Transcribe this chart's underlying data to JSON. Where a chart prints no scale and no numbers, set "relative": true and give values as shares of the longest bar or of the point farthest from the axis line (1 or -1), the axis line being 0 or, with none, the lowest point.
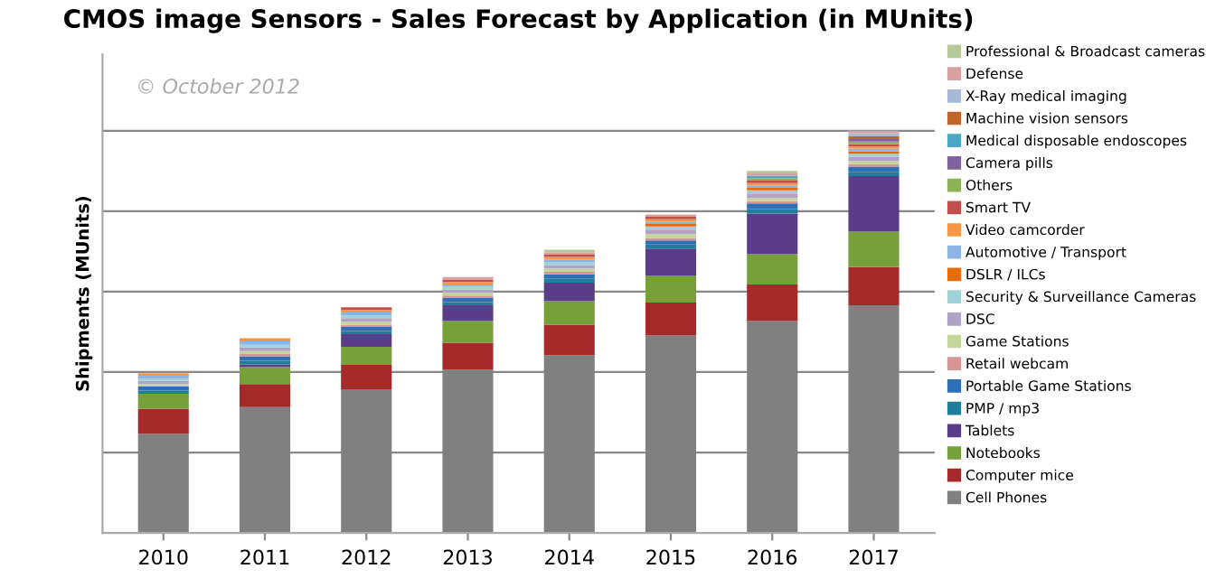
{
  "chart_data": {
    "type": "bar",
    "title": "CMOS image Sensors - Sales Forecast by Application (in MUnits)",
    "ylabel": "Shipments (MUnits)",
    "annotations": [
      "© October 2012"
    ],
    "relative": true,
    "stacked": true,
    "grid": "y",
    "legend": "right",
    "categories": [
      "2010",
      "2011",
      "2012",
      "2013",
      "2014",
      "2015",
      "2016",
      "2017"
    ],
    "series": [
      {
        "name": "Cell Phones",
        "color": "#808080",
        "values": [
          0.246,
          0.313,
          0.357,
          0.406,
          0.442,
          0.491,
          0.527,
          0.566
        ]
      },
      {
        "name": "Computer mice",
        "color": "#a52a2a",
        "values": [
          0.063,
          0.057,
          0.061,
          0.067,
          0.076,
          0.082,
          0.091,
          0.095
        ]
      },
      {
        "name": "Notebooks",
        "color": "#76a03a",
        "values": [
          0.037,
          0.042,
          0.045,
          0.054,
          0.058,
          0.067,
          0.075,
          0.088
        ]
      },
      {
        "name": "Tablets",
        "color": "#5a3d8a",
        "values": [
          null,
          0.007,
          0.031,
          0.039,
          0.046,
          0.067,
          0.101,
          0.138
        ]
      },
      {
        "name": "PMP / mp3",
        "color": "#1f7f9a",
        "values": [
          0.008,
          0.009,
          0.008,
          0.008,
          0.01,
          0.01,
          0.011,
          0.011
        ]
      },
      {
        "name": "Portable Game Stations",
        "color": "#2e6fb5",
        "values": [
          0.01,
          0.011,
          0.01,
          0.01,
          0.011,
          0.01,
          0.014,
          0.013
        ]
      },
      {
        "name": "Retail webcam",
        "color": "#d99594",
        "values": [
          null,
          0.006,
          0.006,
          0.006,
          0.006,
          0.006,
          0.006,
          0.006
        ]
      },
      {
        "name": "Game Stations",
        "color": "#c4d79b",
        "values": [
          0.006,
          0.007,
          0.007,
          0.007,
          0.008,
          0.01,
          0.008,
          0.008
        ]
      },
      {
        "name": "DSC",
        "color": "#b3a2c7",
        "values": [
          0.008,
          0.009,
          0.009,
          0.008,
          0.009,
          0.011,
          0.011,
          0.01
        ]
      },
      {
        "name": "Security & Surveillance Cameras",
        "color": "#9fd2d6",
        "values": [
          0.006,
          0.007,
          0.007,
          0.007,
          0.008,
          0.008,
          0.008,
          0.008
        ]
      },
      {
        "name": "DSLR / ILCs",
        "color": "#e46c0a",
        "values": [
          null,
          null,
          null,
          null,
          null,
          0.006,
          0.006,
          0.006
        ]
      },
      {
        "name": "Automotive / Transport",
        "color": "#8eb4e3",
        "values": [
          0.007,
          0.008,
          0.007,
          0.006,
          0.006,
          0.006,
          0.006,
          0.006
        ]
      },
      {
        "name": "Video camcorder",
        "color": "#f79646",
        "values": [
          0.006,
          0.008,
          0.007,
          0.006,
          0.006,
          0.006,
          0.006,
          0.006
        ]
      },
      {
        "name": "Smart TV",
        "color": "#c0504d",
        "values": [
          null,
          null,
          0.006,
          0.006,
          0.006,
          0.006,
          0.006,
          0.006
        ]
      },
      {
        "name": "Others",
        "color": "#8db25a",
        "values": [
          null,
          null,
          null,
          null,
          null,
          null,
          0.006,
          0.006
        ]
      },
      {
        "name": "Camera pills",
        "color": "#7f63a0",
        "values": [
          null,
          null,
          null,
          null,
          null,
          null,
          null,
          0.006
        ]
      },
      {
        "name": "Medical disposable endoscopes",
        "color": "#4ba8c4",
        "values": [
          null,
          null,
          null,
          null,
          null,
          null,
          0.006,
          null
        ]
      },
      {
        "name": "Machine vision sensors",
        "color": "#c0652a",
        "values": [
          null,
          null,
          null,
          null,
          null,
          null,
          null,
          0.007
        ]
      },
      {
        "name": "X-Ray medical imaging",
        "color": "#a6b9d9",
        "values": [
          null,
          null,
          null,
          null,
          null,
          null,
          null,
          0.008
        ]
      },
      {
        "name": "Defense",
        "color": "#d9a0a0",
        "values": [
          null,
          null,
          null,
          0.006,
          0.006,
          0.006,
          0.006,
          0.006
        ]
      },
      {
        "name": "Professional & Broadcast cameras",
        "color": "#b5c99a",
        "values": [
          null,
          null,
          null,
          null,
          0.006,
          null,
          0.006,
          null
        ]
      }
    ]
  }
}
